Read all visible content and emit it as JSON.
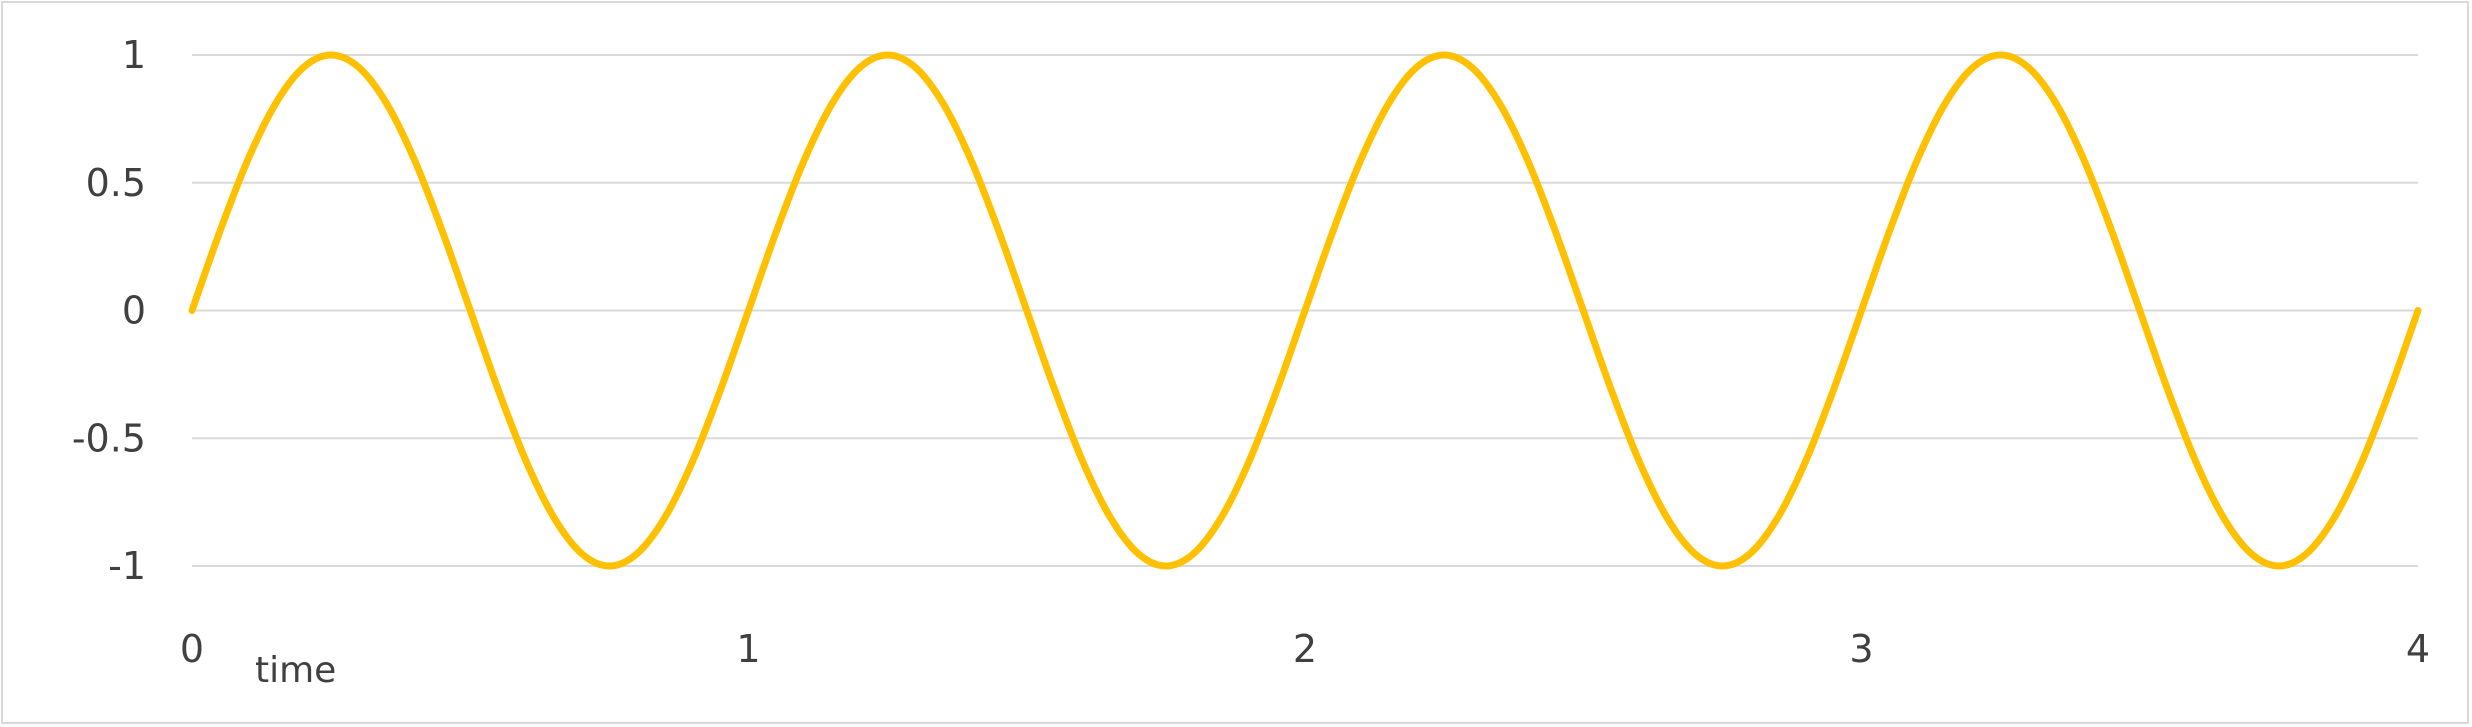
{
  "chart_data": {
    "type": "line",
    "title": "",
    "xlabel": "time",
    "ylabel": "",
    "xlim": [
      0,
      4
    ],
    "ylim": [
      -1,
      1
    ],
    "x_ticks": [
      "0",
      "1",
      "2",
      "3",
      "4"
    ],
    "y_ticks": [
      "1",
      "0.5",
      "0",
      "-0.5",
      "-1"
    ],
    "y_tick_values": [
      1,
      0.5,
      0,
      -0.5,
      -1
    ],
    "x_tick_values": [
      0,
      1,
      2,
      3,
      4
    ],
    "grid": true,
    "legend": "none",
    "series": [
      {
        "color": "#FFC000",
        "x": [
          0,
          0.05,
          0.1,
          0.15,
          0.2,
          0.25,
          0.3,
          0.35,
          0.4,
          0.45,
          0.5,
          0.55,
          0.6,
          0.65,
          0.7,
          0.75,
          0.8,
          0.85,
          0.9,
          0.95,
          1.0,
          1.05,
          1.1,
          1.15,
          1.2,
          1.25,
          1.3,
          1.35,
          1.4,
          1.45,
          1.5,
          1.55,
          1.6,
          1.65,
          1.7,
          1.75,
          1.8,
          1.85,
          1.9,
          1.95,
          2.0,
          2.05,
          2.1,
          2.15,
          2.2,
          2.25,
          2.3,
          2.35,
          2.4,
          2.45,
          2.5,
          2.55,
          2.6,
          2.65,
          2.7,
          2.75,
          2.8,
          2.85,
          2.9,
          2.95,
          3.0,
          3.05,
          3.1,
          3.15,
          3.2,
          3.25,
          3.3,
          3.35,
          3.4,
          3.45,
          3.5,
          3.55,
          3.6,
          3.65,
          3.7,
          3.75,
          3.8,
          3.85,
          3.9,
          3.95,
          4.0
        ],
        "values": [
          0,
          0.309,
          0.588,
          0.809,
          0.951,
          1,
          0.951,
          0.809,
          0.588,
          0.309,
          0,
          -0.309,
          -0.588,
          -0.809,
          -0.951,
          -1,
          -0.951,
          -0.809,
          -0.588,
          -0.309,
          0,
          0.309,
          0.588,
          0.809,
          0.951,
          1,
          0.951,
          0.809,
          0.588,
          0.309,
          0,
          -0.309,
          -0.588,
          -0.809,
          -0.951,
          -1,
          -0.951,
          -0.809,
          -0.588,
          -0.309,
          0,
          0.309,
          0.588,
          0.809,
          0.951,
          1,
          0.951,
          0.809,
          0.588,
          0.309,
          0,
          -0.309,
          -0.588,
          -0.809,
          -0.951,
          -1,
          -0.951,
          -0.809,
          -0.588,
          -0.309,
          0,
          0.309,
          0.588,
          0.809,
          0.951,
          1,
          0.951,
          0.809,
          0.588,
          0.309,
          0,
          -0.309,
          -0.588,
          -0.809,
          -0.951,
          -1,
          -0.951,
          -0.809,
          -0.588,
          -0.309,
          0
        ]
      }
    ]
  }
}
